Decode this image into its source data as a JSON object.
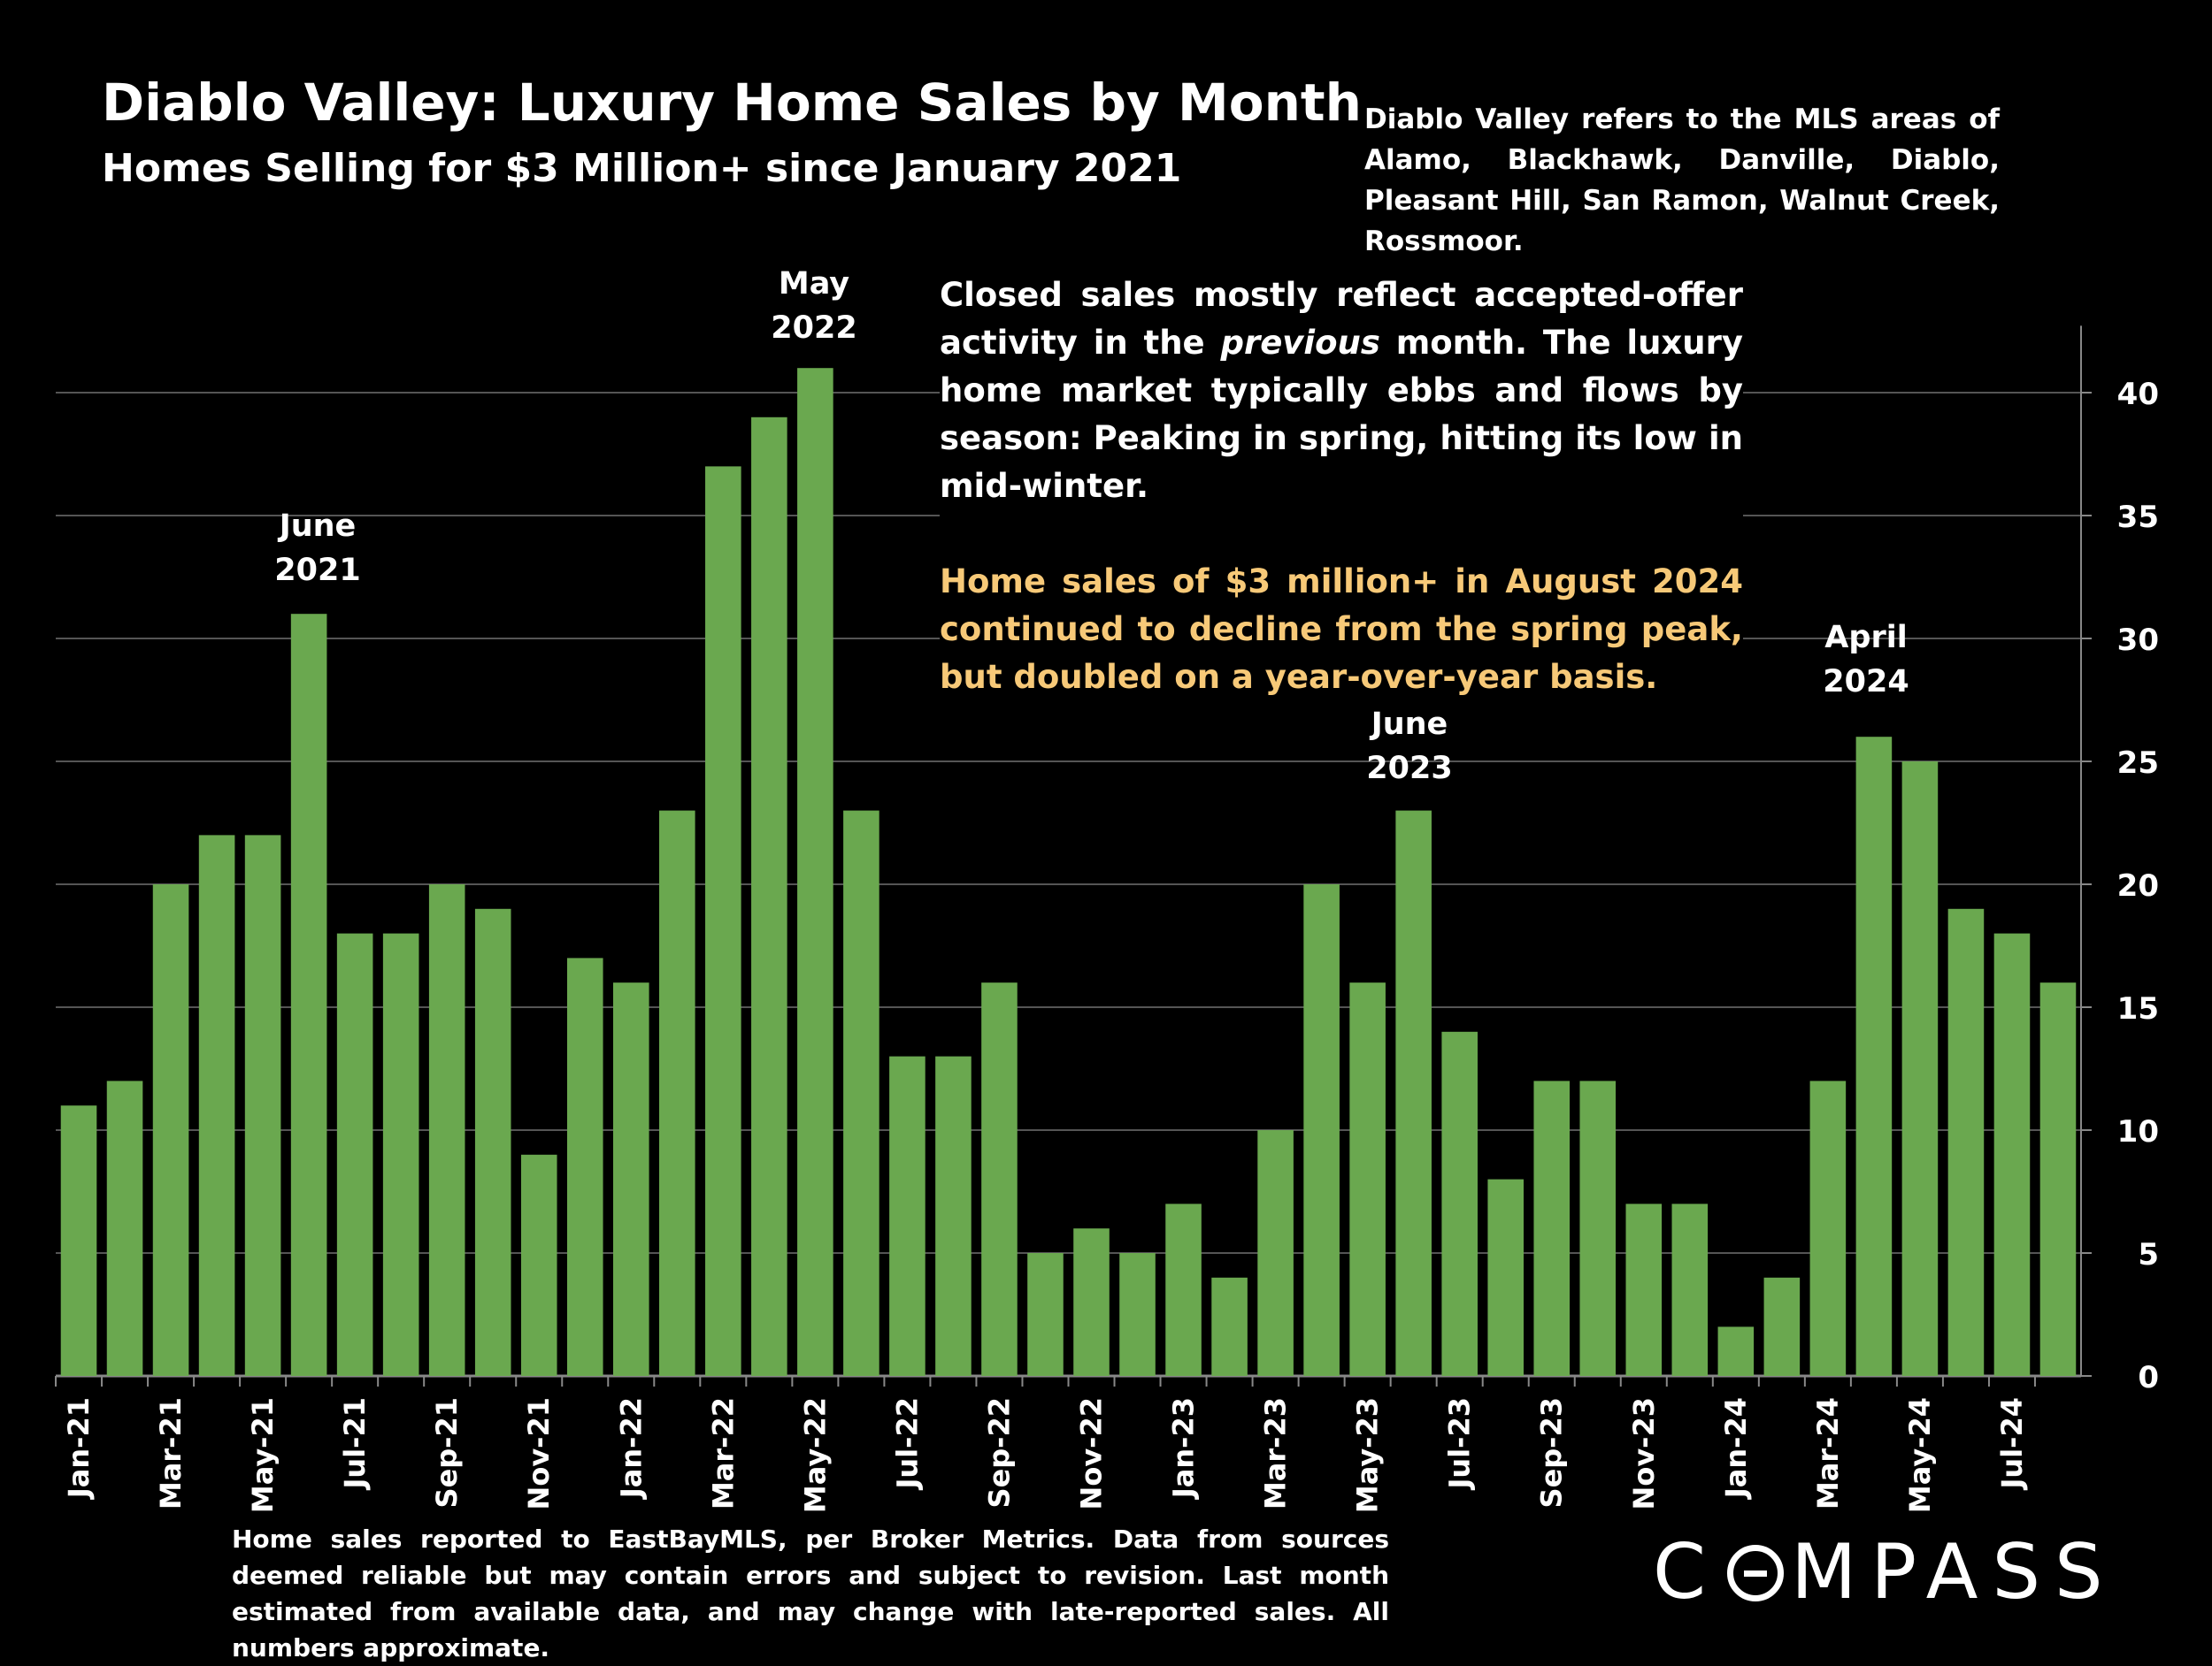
{
  "header": {
    "title": "Diablo Valley:  Luxury Home Sales by Month",
    "subtitle": "Homes Selling for $3 Million+ since January 2021",
    "areas_note": "Diablo Valley refers to the MLS areas of Alamo, Blackhawk, Danville, Diablo, Pleasant Hill, San Ramon, Walnut Creek, Rossmoor."
  },
  "commentary": {
    "p1_before": "Closed sales mostly reflect accepted-offer activity in the ",
    "p1_italic": "previous",
    "p1_after": " month. The luxury home market typically ebbs and flows by season: Peaking in spring, hitting its low in mid-winter.",
    "p2": "Home sales of $3 million+ in August 2024 continued to decline from the spring peak, but doubled on a year-over-year basis."
  },
  "annotations": {
    "june2021": {
      "line1": "June",
      "line2": "2021"
    },
    "may2022": {
      "line1": "May",
      "line2": "2022"
    },
    "june2023": {
      "line1": "June",
      "line2": "2023"
    },
    "april2024": {
      "line1": "April",
      "line2": "2024"
    }
  },
  "footer": {
    "note": "Home sales reported to EastBayMLS, per Broker Metrics. Data from sources deemed reliable but may contain errors and subject to revision.  Last month estimated from available data, and may change with late-reported sales. All numbers approximate."
  },
  "brand": {
    "left": "C",
    "right": "MPASS"
  },
  "colors": {
    "bar": "#6aa84f",
    "background": "#000000",
    "highlight": "#f7c978",
    "grid": "#555555"
  },
  "chart_data": {
    "type": "bar",
    "title": "Diablo Valley:  Luxury Home Sales by Month",
    "xlabel": "",
    "ylabel": "",
    "ylim": [
      0,
      42
    ],
    "yticks": [
      0,
      5,
      10,
      15,
      20,
      25,
      30,
      35,
      40
    ],
    "y_axis_side": "right",
    "grid": true,
    "categories": [
      "Jan-21",
      "Feb-21",
      "Mar-21",
      "Apr-21",
      "May-21",
      "Jun-21",
      "Jul-21",
      "Aug-21",
      "Sep-21",
      "Oct-21",
      "Nov-21",
      "Dec-21",
      "Jan-22",
      "Feb-22",
      "Mar-22",
      "Apr-22",
      "May-22",
      "Jun-22",
      "Jul-22",
      "Aug-22",
      "Sep-22",
      "Oct-22",
      "Nov-22",
      "Dec-22",
      "Jan-23",
      "Feb-23",
      "Mar-23",
      "Apr-23",
      "May-23",
      "Jun-23",
      "Jul-23",
      "Aug-23",
      "Sep-23",
      "Oct-23",
      "Nov-23",
      "Dec-23",
      "Jan-24",
      "Feb-24",
      "Mar-24",
      "Apr-24",
      "May-24",
      "Jun-24",
      "Jul-24",
      "Aug-24"
    ],
    "x_tick_labels": [
      "Jan-21",
      "Mar-21",
      "May-21",
      "Jul-21",
      "Sep-21",
      "Nov-21",
      "Jan-22",
      "Mar-22",
      "May-22",
      "Jul-22",
      "Sep-22",
      "Nov-22",
      "Jan-23",
      "Mar-23",
      "May-23",
      "Jul-23",
      "Sep-23",
      "Nov-23",
      "Jan-24",
      "Mar-24",
      "May-24",
      "Jul-24"
    ],
    "values": [
      11,
      12,
      20,
      22,
      22,
      31,
      18,
      18,
      20,
      19,
      9,
      17,
      16,
      23,
      37,
      39,
      41,
      23,
      13,
      13,
      16,
      5,
      6,
      5,
      7,
      4,
      10,
      20,
      16,
      23,
      14,
      8,
      12,
      12,
      7,
      7,
      2,
      4,
      12,
      26,
      25,
      19,
      18,
      16
    ]
  }
}
